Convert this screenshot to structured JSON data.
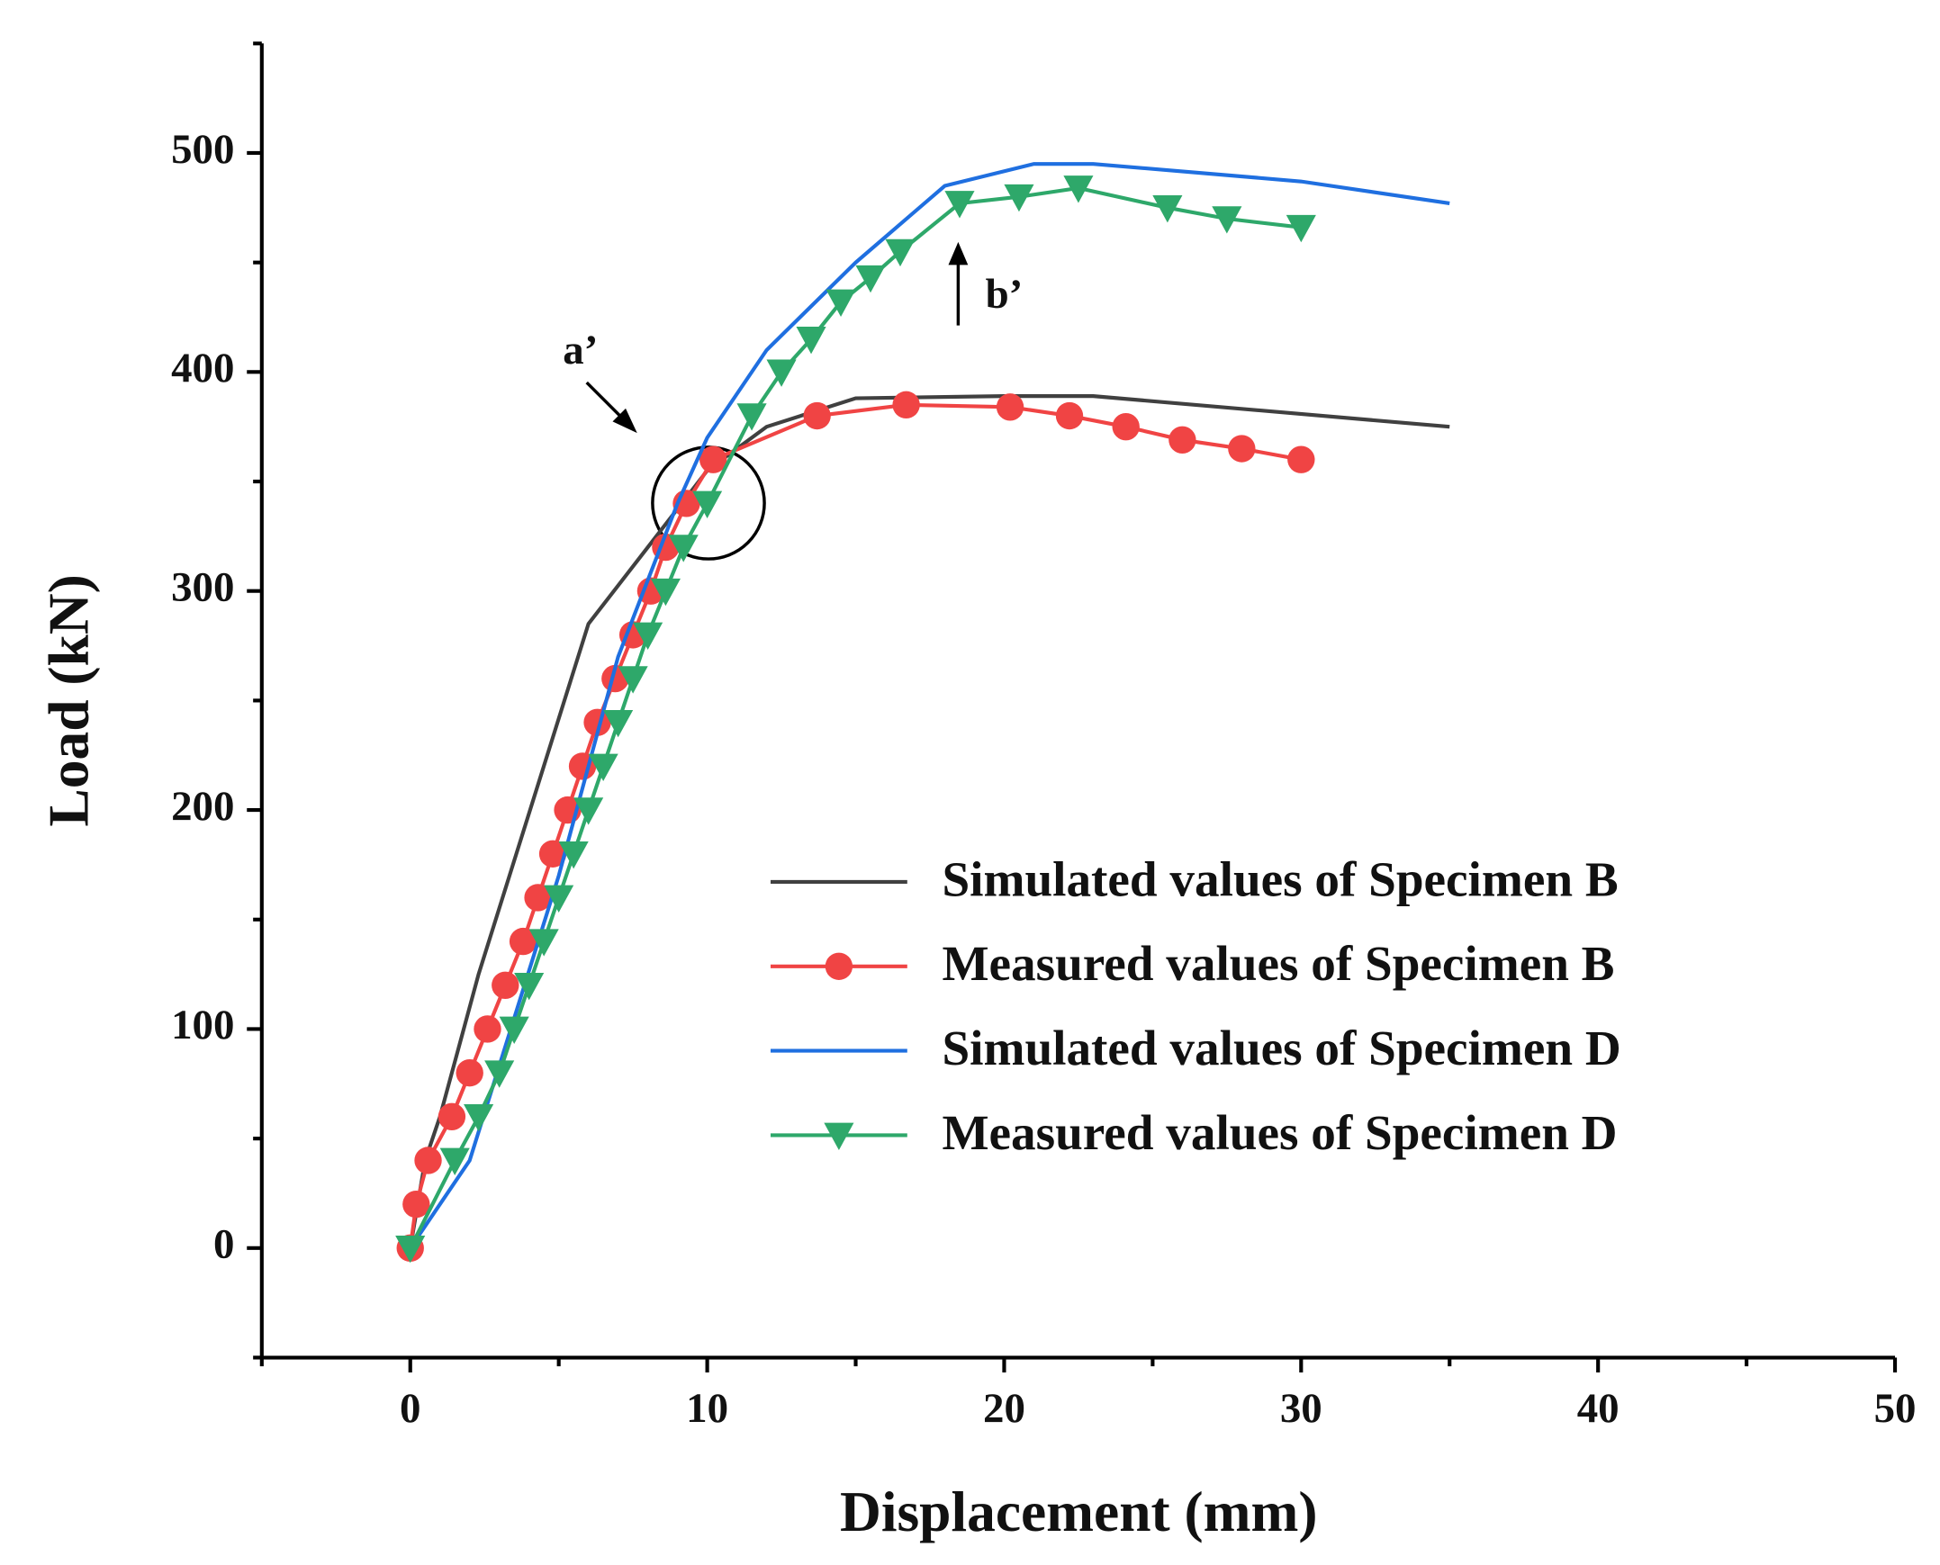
{
  "chart_data": {
    "type": "line",
    "xlabel": "Displacement (mm)",
    "ylabel": "Load (kN)",
    "xlim": [
      -5,
      50
    ],
    "ylim": [
      -50,
      550
    ],
    "xticks": [
      0,
      10,
      20,
      30,
      40,
      50
    ],
    "yticks": [
      0,
      100,
      200,
      300,
      400,
      500
    ],
    "xminorticks": [
      -5,
      5,
      15,
      25,
      35,
      45
    ],
    "yminorticks": [
      -50,
      50,
      150,
      250,
      350,
      450,
      550
    ],
    "legend": "lower right",
    "annotations": [
      "a’",
      "b’"
    ],
    "series": [
      {
        "name": "Simulated values of Specimen B",
        "color": "#404040",
        "marker": null,
        "x": [
          0,
          0.5,
          1,
          2.3,
          6,
          8,
          10,
          12,
          15,
          20,
          23,
          35
        ],
        "values": [
          0,
          40,
          60,
          125,
          285,
          320,
          355,
          375,
          388,
          389,
          389,
          375
        ]
      },
      {
        "name": "Measured values of Specimen B",
        "color": "#f04444",
        "marker": "circle",
        "x": [
          0,
          0.2,
          0.6,
          1.4,
          2,
          2.6,
          3.2,
          3.8,
          4.3,
          4.8,
          5.3,
          5.8,
          6.3,
          6.9,
          7.5,
          8.1,
          8.6,
          9.3,
          10.2,
          13.7,
          16.7,
          20.2,
          22.2,
          24.1,
          26,
          28,
          30
        ],
        "values": [
          0,
          20,
          40,
          60,
          80,
          100,
          120,
          140,
          160,
          180,
          200,
          220,
          240,
          260,
          280,
          300,
          320,
          340,
          360,
          380,
          385,
          384,
          380,
          375,
          369,
          365,
          360
        ]
      },
      {
        "name": "Simulated values of Specimen D",
        "color": "#1f6fe0",
        "marker": null,
        "x": [
          0,
          2,
          5,
          7,
          9,
          10,
          12,
          15,
          18,
          21,
          23,
          30,
          35
        ],
        "values": [
          0,
          40,
          170,
          270,
          340,
          370,
          410,
          450,
          485,
          495,
          495,
          487,
          477
        ]
      },
      {
        "name": "Measured values of Specimen D",
        "color": "#2ea86a",
        "marker": "triangle",
        "x": [
          0,
          1.5,
          2.3,
          3,
          3.5,
          4,
          4.5,
          5,
          5.5,
          6,
          6.5,
          7,
          7.5,
          8,
          8.6,
          9.2,
          10,
          11.5,
          12.5,
          13.5,
          14.5,
          15.5,
          16.5,
          18.5,
          20.5,
          22.5,
          25.5,
          27.5,
          30
        ],
        "values": [
          0,
          40,
          60,
          80,
          100,
          120,
          140,
          160,
          180,
          200,
          220,
          240,
          260,
          280,
          300,
          320,
          340,
          380,
          400,
          415,
          432,
          443,
          455,
          477,
          480,
          484,
          475,
          470,
          466
        ]
      }
    ]
  }
}
